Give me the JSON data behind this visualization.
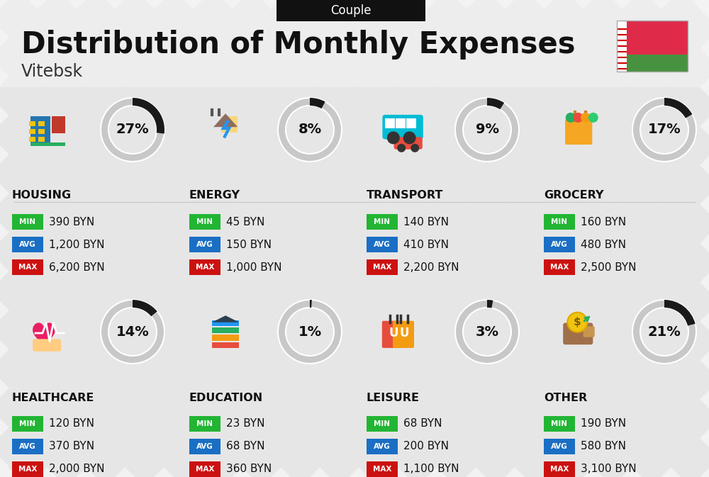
{
  "title": "Distribution of Monthly Expenses",
  "subtitle": "Couple",
  "city": "Vitebsk",
  "bg_color": "#f2f2f2",
  "categories": [
    {
      "name": "HOUSING",
      "pct": 27,
      "min": "390 BYN",
      "avg": "1,200 BYN",
      "max": "6,200 BYN",
      "row": 0,
      "col": 0
    },
    {
      "name": "ENERGY",
      "pct": 8,
      "min": "45 BYN",
      "avg": "150 BYN",
      "max": "1,000 BYN",
      "row": 0,
      "col": 1
    },
    {
      "name": "TRANSPORT",
      "pct": 9,
      "min": "140 BYN",
      "avg": "410 BYN",
      "max": "2,200 BYN",
      "row": 0,
      "col": 2
    },
    {
      "name": "GROCERY",
      "pct": 17,
      "min": "160 BYN",
      "avg": "480 BYN",
      "max": "2,500 BYN",
      "row": 0,
      "col": 3
    },
    {
      "name": "HEALTHCARE",
      "pct": 14,
      "min": "120 BYN",
      "avg": "370 BYN",
      "max": "2,000 BYN",
      "row": 1,
      "col": 0
    },
    {
      "name": "EDUCATION",
      "pct": 1,
      "min": "23 BYN",
      "avg": "68 BYN",
      "max": "360 BYN",
      "row": 1,
      "col": 1
    },
    {
      "name": "LEISURE",
      "pct": 3,
      "min": "68 BYN",
      "avg": "200 BYN",
      "max": "1,100 BYN",
      "row": 1,
      "col": 2
    },
    {
      "name": "OTHER",
      "pct": 21,
      "min": "190 BYN",
      "avg": "580 BYN",
      "max": "3,100 BYN",
      "row": 1,
      "col": 3
    }
  ],
  "color_min": "#22b533",
  "color_avg": "#1a6fc4",
  "color_max": "#cc1111",
  "color_ring_filled": "#1a1a1a",
  "color_ring_empty": "#c8c8c8",
  "stripe_color": "#e6e6e6",
  "header_bg": "#111111",
  "header_text": "#ffffff",
  "title_color": "#111111",
  "city_color": "#333333",
  "cat_name_color": "#111111"
}
